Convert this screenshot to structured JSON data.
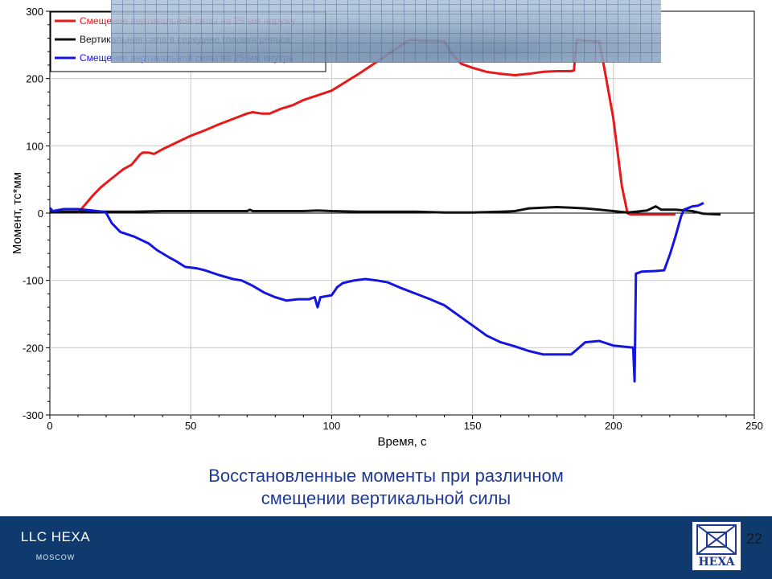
{
  "chart_data": {
    "type": "line",
    "title": "",
    "xlabel": "Время, с",
    "ylabel": "Момент, тс*мм",
    "xlim": [
      0,
      250
    ],
    "ylim": [
      -300,
      300
    ],
    "xticks": [
      0,
      50,
      100,
      150,
      200,
      250
    ],
    "yticks": [
      -300,
      -200,
      -100,
      0,
      100,
      200,
      300
    ],
    "grid": true,
    "legend_position": "top-left",
    "series": [
      {
        "name": "Смещение вертикальной силы на 25 мм наружу",
        "color": "#e8191a",
        "points": [
          [
            10,
            0
          ],
          [
            12,
            10
          ],
          [
            15,
            25
          ],
          [
            18,
            38
          ],
          [
            20,
            45
          ],
          [
            23,
            55
          ],
          [
            26,
            65
          ],
          [
            29,
            72
          ],
          [
            32,
            87
          ],
          [
            33,
            90
          ],
          [
            35,
            90
          ],
          [
            37,
            88
          ],
          [
            40,
            95
          ],
          [
            45,
            105
          ],
          [
            50,
            115
          ],
          [
            55,
            123
          ],
          [
            60,
            132
          ],
          [
            65,
            140
          ],
          [
            70,
            148
          ],
          [
            72,
            150
          ],
          [
            75,
            148
          ],
          [
            78,
            148
          ],
          [
            82,
            155
          ],
          [
            86,
            160
          ],
          [
            90,
            168
          ],
          [
            95,
            175
          ],
          [
            100,
            182
          ],
          [
            105,
            195
          ],
          [
            110,
            208
          ],
          [
            115,
            222
          ],
          [
            120,
            236
          ],
          [
            125,
            250
          ],
          [
            128,
            258
          ],
          [
            132,
            256
          ],
          [
            136,
            256
          ],
          [
            140,
            255
          ],
          [
            143,
            235
          ],
          [
            146,
            222
          ],
          [
            150,
            216
          ],
          [
            155,
            210
          ],
          [
            160,
            207
          ],
          [
            165,
            205
          ],
          [
            170,
            207
          ],
          [
            175,
            210
          ],
          [
            180,
            211
          ],
          [
            185,
            211
          ],
          [
            186,
            212
          ],
          [
            187,
            258
          ],
          [
            190,
            256
          ],
          [
            195,
            255
          ],
          [
            197,
            210
          ],
          [
            200,
            140
          ],
          [
            203,
            40
          ],
          [
            205,
            0
          ],
          [
            206,
            -2
          ],
          [
            210,
            -2
          ],
          [
            215,
            -2
          ],
          [
            222,
            -2
          ]
        ]
      },
      {
        "name": "Вертикальная сила в середине головки рельса",
        "color": "#111111",
        "points": [
          [
            0,
            2
          ],
          [
            10,
            2
          ],
          [
            20,
            2
          ],
          [
            30,
            2
          ],
          [
            40,
            3
          ],
          [
            50,
            3
          ],
          [
            60,
            3
          ],
          [
            70,
            3
          ],
          [
            71,
            5
          ],
          [
            72,
            3
          ],
          [
            80,
            3
          ],
          [
            90,
            3
          ],
          [
            95,
            4
          ],
          [
            100,
            3
          ],
          [
            110,
            2
          ],
          [
            120,
            2
          ],
          [
            130,
            2
          ],
          [
            140,
            1
          ],
          [
            150,
            1
          ],
          [
            160,
            2
          ],
          [
            165,
            3
          ],
          [
            170,
            7
          ],
          [
            175,
            8
          ],
          [
            180,
            9
          ],
          [
            185,
            8
          ],
          [
            190,
            7
          ],
          [
            195,
            5
          ],
          [
            200,
            3
          ],
          [
            205,
            1
          ],
          [
            208,
            2
          ],
          [
            212,
            4
          ],
          [
            215,
            10
          ],
          [
            217,
            5
          ],
          [
            222,
            5
          ],
          [
            228,
            3
          ],
          [
            232,
            -1
          ],
          [
            238,
            -2
          ]
        ]
      },
      {
        "name": "Смещение вертикальной силы на 25 мм внутрь",
        "color": "#1515e0",
        "points": [
          [
            0,
            8
          ],
          [
            1,
            3
          ],
          [
            5,
            6
          ],
          [
            10,
            6
          ],
          [
            15,
            4
          ],
          [
            19,
            2
          ],
          [
            20,
            0
          ],
          [
            22,
            -15
          ],
          [
            25,
            -28
          ],
          [
            30,
            -35
          ],
          [
            35,
            -45
          ],
          [
            38,
            -55
          ],
          [
            42,
            -65
          ],
          [
            45,
            -72
          ],
          [
            48,
            -80
          ],
          [
            52,
            -82
          ],
          [
            55,
            -85
          ],
          [
            60,
            -92
          ],
          [
            65,
            -98
          ],
          [
            68,
            -100
          ],
          [
            72,
            -108
          ],
          [
            76,
            -118
          ],
          [
            80,
            -125
          ],
          [
            84,
            -130
          ],
          [
            88,
            -128
          ],
          [
            92,
            -128
          ],
          [
            94,
            -125
          ],
          [
            95,
            -140
          ],
          [
            96,
            -125
          ],
          [
            100,
            -122
          ],
          [
            102,
            -110
          ],
          [
            104,
            -104
          ],
          [
            108,
            -100
          ],
          [
            112,
            -98
          ],
          [
            116,
            -100
          ],
          [
            120,
            -103
          ],
          [
            125,
            -112
          ],
          [
            130,
            -120
          ],
          [
            135,
            -128
          ],
          [
            140,
            -137
          ],
          [
            145,
            -152
          ],
          [
            150,
            -167
          ],
          [
            155,
            -182
          ],
          [
            160,
            -192
          ],
          [
            165,
            -198
          ],
          [
            170,
            -205
          ],
          [
            175,
            -210
          ],
          [
            180,
            -210
          ],
          [
            185,
            -210
          ],
          [
            187,
            -203
          ],
          [
            190,
            -192
          ],
          [
            195,
            -190
          ],
          [
            200,
            -197
          ],
          [
            207,
            -200
          ],
          [
            207.5,
            -250
          ],
          [
            208,
            -90
          ],
          [
            210,
            -87
          ],
          [
            215,
            -86
          ],
          [
            218,
            -85
          ],
          [
            220,
            -62
          ],
          [
            222,
            -35
          ],
          [
            224,
            -5
          ],
          [
            225,
            5
          ],
          [
            228,
            10
          ],
          [
            230,
            11
          ],
          [
            232,
            15
          ]
        ]
      }
    ]
  },
  "caption": {
    "line1": "Восстановленные  моменты при различном",
    "line2": "смещении вертикальной силы"
  },
  "footer": {
    "brand": "LLC  HEXA",
    "brand_sub": "MOSCOW",
    "logo_text": "HEXA",
    "page_number": "22"
  }
}
